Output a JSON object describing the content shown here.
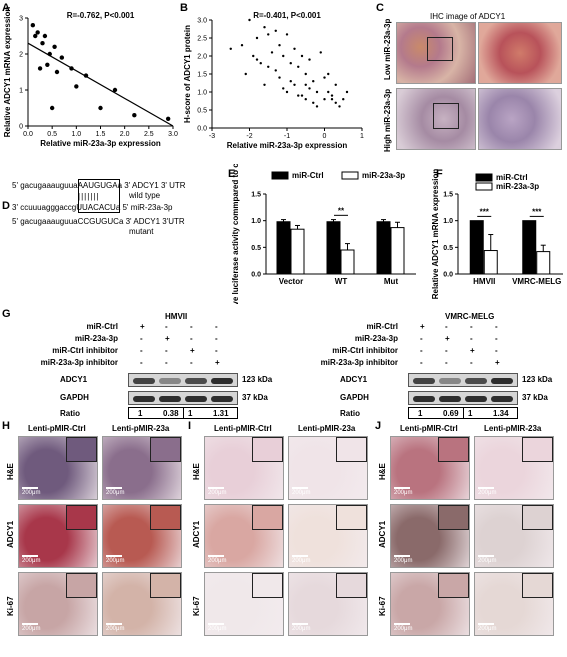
{
  "panels": {
    "A": {
      "letter": "A",
      "stat": "R=-0.762, P<0.001",
      "xlabel": "Relative miR-23a-3p expression",
      "ylabel": "Relative ADCY1 mRNA expression"
    },
    "B": {
      "letter": "B",
      "stat": "R=-0.401, P<0.001",
      "xlabel": "Relative miR-23a-3p expression",
      "ylabel": "H-score of ADCY1 protein"
    },
    "C": {
      "letter": "C",
      "title": "IHC image of ADCY1",
      "row_low": "Low miR-23a-3p",
      "row_high": "High miR-23a-3p"
    },
    "D": {
      "letter": "D",
      "line1_seq": "5' gacugaaauguua",
      "line1_box": "AAUGUGA",
      "line1_end": "a 3'",
      "line1_label": "ADCY1 3' UTR",
      "line1_label2": "wild type",
      "line2_seq": "3' ccuuuagggaccg",
      "line2_box": "UUACACU",
      "line2_end": "a 5'",
      "line2_label": "miR-23a-3p",
      "line3_seq": "5' gacugaaauguua",
      "line3_mut": "CCGUGUC",
      "line3_end": "a 3'",
      "line3_label": "ADCY1 3'UTR",
      "line3_label2": "mutant"
    },
    "E": {
      "letter": "E",
      "ylabel": "Relative luciferase activity\ncommpared to control",
      "sig": "**"
    },
    "F": {
      "letter": "F",
      "ylabel": "Relative ADCY1 mRNA expression",
      "sig1": "***",
      "sig2": "***"
    },
    "G": {
      "letter": "G",
      "left_title": "HMVII",
      "right_title": "VMRC-MELG",
      "row_labels": [
        "miR-Ctrl",
        "miR-23a-3p",
        "miR-Ctrl inhibitor",
        "miR-23a-3p inhibitor"
      ],
      "marks": [
        [
          "+",
          "-",
          "-",
          "-"
        ],
        [
          "-",
          "+",
          "-",
          "-"
        ],
        [
          "-",
          "-",
          "+",
          "-"
        ],
        [
          "-",
          "-",
          "-",
          "+"
        ]
      ],
      "blot1": "ADCY1",
      "blot2": "GAPDH",
      "kda1": "123 kDa",
      "kda2": "37 kDa",
      "ratio_label": "Ratio",
      "ratios_left": [
        "1",
        "0.38",
        "1",
        "1.31"
      ],
      "ratios_right": [
        "1",
        "0.69",
        "1",
        "1.34"
      ]
    },
    "H": {
      "letter": "H"
    },
    "I": {
      "letter": "I"
    },
    "J": {
      "letter": "J"
    },
    "micro_cols": [
      "Lenti-pMIR-Ctrl",
      "Lenti-pMIR-23a"
    ],
    "micro_rows": [
      "H&E",
      "ADCY1",
      "Ki-67"
    ],
    "scale_text": "200μm"
  },
  "chart_data": [
    {
      "type": "scatter",
      "panel": "A",
      "title": "R=-0.762, P<0.001",
      "xlabel": "Relative miR-23a-3p expression",
      "ylabel": "Relative ADCY1 mRNA expression",
      "xlim": [
        0,
        3
      ],
      "ylim": [
        0,
        3
      ],
      "xticks": [
        "0.0",
        "0.5",
        "1.0",
        "1.5",
        "2.0",
        "2.5",
        "3.0"
      ],
      "yticks": [
        "0",
        "1",
        "2",
        "3"
      ],
      "x": [
        0.1,
        0.15,
        0.2,
        0.25,
        0.3,
        0.35,
        0.4,
        0.45,
        0.5,
        0.55,
        0.6,
        0.7,
        0.9,
        1.0,
        1.2,
        1.5,
        1.8,
        2.2,
        2.9
      ],
      "y": [
        2.8,
        2.5,
        2.6,
        1.6,
        2.3,
        2.5,
        1.7,
        2.0,
        0.5,
        2.2,
        1.5,
        1.9,
        1.6,
        1.1,
        1.4,
        0.5,
        1.0,
        0.3,
        0.2
      ],
      "fit_line": {
        "x": [
          0,
          3
        ],
        "y": [
          2.3,
          0.0
        ]
      }
    },
    {
      "type": "scatter",
      "panel": "B",
      "title": "R=-0.401, P<0.001",
      "xlabel": "Relative miR-23a-3p expression",
      "ylabel": "H-score of ADCY1 protein",
      "xlim": [
        -3,
        1
      ],
      "ylim": [
        0,
        3
      ],
      "xticks": [
        "-3",
        "-2",
        "-1",
        "0",
        "1"
      ],
      "yticks": [
        "0.0",
        "0.5",
        "1.0",
        "1.5",
        "2.0",
        "2.5",
        "3.0"
      ],
      "x": [
        -2.5,
        -2.2,
        -2.1,
        -2.0,
        -1.9,
        -1.8,
        -1.7,
        -1.6,
        -1.5,
        -1.5,
        -1.4,
        -1.3,
        -1.2,
        -1.2,
        -1.1,
        -1.0,
        -1.0,
        -0.9,
        -0.8,
        -0.8,
        -0.7,
        -0.6,
        -0.6,
        -0.5,
        -0.5,
        -0.4,
        -0.3,
        -0.3,
        -0.2,
        -0.1,
        0.0,
        0.0,
        0.1,
        0.2,
        0.3,
        0.4,
        0.5,
        0.6,
        -1.6,
        -1.3,
        -0.9,
        -0.7,
        -0.4,
        -0.2,
        0.1,
        0.2,
        -1.8,
        -1.1,
        -0.5,
        0.3
      ],
      "y": [
        2.2,
        2.3,
        1.5,
        3.0,
        2.0,
        2.5,
        1.8,
        2.8,
        1.7,
        2.6,
        2.1,
        2.7,
        1.4,
        2.3,
        2.0,
        1.0,
        2.6,
        1.8,
        2.2,
        1.2,
        1.7,
        0.9,
        2.0,
        1.5,
        0.8,
        1.9,
        1.3,
        0.7,
        1.0,
        2.1,
        0.8,
        1.4,
        1.5,
        0.9,
        1.2,
        0.6,
        0.8,
        1.0,
        1.2,
        1.6,
        1.3,
        0.9,
        1.1,
        0.6,
        1.0,
        0.8,
        1.9,
        1.1,
        1.2,
        0.7
      ]
    },
    {
      "type": "bar",
      "panel": "E",
      "ylabel": "Relative luciferase activity commpared to control",
      "categories": [
        "Vector",
        "WT",
        "Mut"
      ],
      "ylim": [
        0,
        1.5
      ],
      "yticks": [
        "0.0",
        "0.5",
        "1.0",
        "1.5"
      ],
      "series": [
        {
          "name": "miR-Ctrl",
          "values": [
            0.98,
            0.98,
            0.98
          ],
          "errors": [
            0.04,
            0.04,
            0.04
          ],
          "color": "#000000"
        },
        {
          "name": "miR-23a-3p",
          "values": [
            0.84,
            0.45,
            0.87
          ],
          "errors": [
            0.07,
            0.12,
            0.1
          ],
          "color": "#ffffff"
        }
      ]
    },
    {
      "type": "bar",
      "panel": "F",
      "ylabel": "Relative ADCY1 mRNA expression",
      "categories": [
        "HMVII",
        "VMRC-MELG"
      ],
      "ylim": [
        0,
        1.5
      ],
      "yticks": [
        "0.0",
        "0.5",
        "1.0",
        "1.5"
      ],
      "series": [
        {
          "name": "miR-Ctrl",
          "values": [
            1.0,
            1.0
          ],
          "errors": [
            0.0,
            0.0
          ],
          "color": "#000000"
        },
        {
          "name": "miR-23a-3p",
          "values": [
            0.44,
            0.42
          ],
          "errors": [
            0.3,
            0.12
          ],
          "color": "#ffffff"
        }
      ]
    }
  ]
}
